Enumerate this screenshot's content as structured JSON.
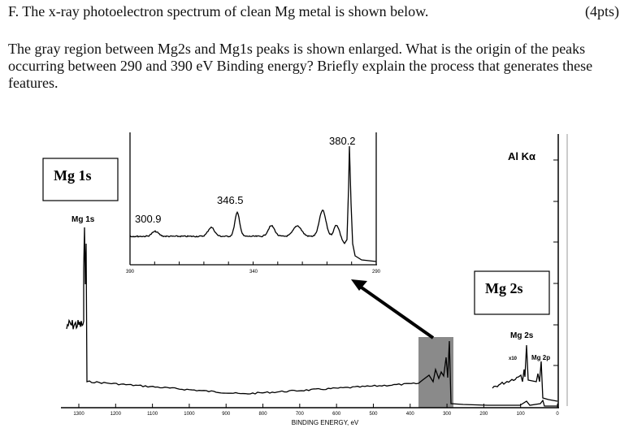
{
  "question": {
    "heading": "F. The x-ray photoelectron spectrum of clean Mg metal is shown below.",
    "points": "(4pts)",
    "body": "The gray region between Mg2s and Mg1s peaks is shown enlarged. What is the origin of the peaks occurring between 290 and 390 eV Binding energy? Briefly explain the process that generates these features."
  },
  "figure": {
    "source_label": "Al Kα",
    "box_mg1s": "Mg 1s",
    "box_mg2s": "Mg 2s",
    "peak_mg1s": "Mg 1s",
    "peak_mg2s": "Mg 2s",
    "peak_mg2p": "Mg 2p",
    "scale_factor": "x10",
    "x_axis_title": "BINDING ENERGY, eV",
    "x_ticks": [
      "1300",
      "1200",
      "1100",
      "1000",
      "900",
      "800",
      "700",
      "600",
      "500",
      "400",
      "300",
      "200",
      "100",
      "0"
    ],
    "highlight_color": "#8a8a8a",
    "inset": {
      "x_ticks": [
        "390",
        "340",
        "290"
      ],
      "peak_labels": [
        "300.9",
        "346.5",
        "380.2"
      ]
    }
  }
}
